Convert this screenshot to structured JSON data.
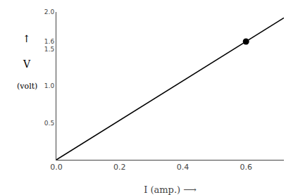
{
  "chart_data": {
    "type": "line",
    "xlabel": "I (amp.) ⟶",
    "annotations": [
      "↑",
      "V",
      "(volt)"
    ],
    "series": [
      {
        "type": "line",
        "color": "#000000",
        "x": [
          0,
          0.72
        ],
        "values": [
          0,
          1.92
        ]
      },
      {
        "type": "scatter",
        "color": "#000000",
        "marker": "circle",
        "x": [
          0.6
        ],
        "values": [
          1.6
        ]
      }
    ],
    "xlim": [
      0,
      0.72
    ],
    "ylim": [
      0,
      2.0
    ],
    "xticks": [
      {
        "value": 0,
        "label": "0.0"
      },
      0.2,
      0.4,
      0.6
    ],
    "yticks": [
      0.5,
      {
        "value": 1.0,
        "label": "1.0"
      },
      1.5,
      1.6,
      {
        "value": 2.0,
        "label": "2.0"
      }
    ],
    "grid": false
  }
}
